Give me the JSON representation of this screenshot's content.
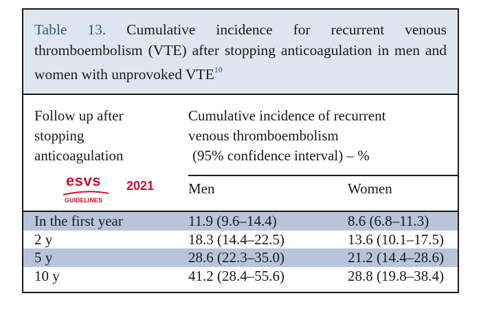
{
  "caption": {
    "label": "Table 13.",
    "text": " Cumulative incidence for recurrent venous thromboembolism (VTE) after stopping anticoagulation in men and women with unprovoked VTE",
    "ref": "10"
  },
  "header": {
    "left": [
      "Follow up after",
      "stopping",
      "anticoagulation"
    ],
    "right": [
      "Cumulative incidence of recurrent",
      "venous thromboembolism",
      "(95% confidence interval) – %"
    ],
    "men": "Men",
    "women": "Women"
  },
  "logo": {
    "word": "esvs",
    "subtitle": "GUIDELINES",
    "year": "2021",
    "color": "#c8102e"
  },
  "rows": [
    {
      "period": "In the first year",
      "men": "11.9 (9.6–14.4)",
      "women": "8.6 (6.8–11.3)"
    },
    {
      "period": "2 y",
      "men": "18.3 (14.4–22.5)",
      "women": "13.6 (10.1–17.5)"
    },
    {
      "period": "5 y",
      "men": "28.6 (22.3–35.0)",
      "women": "21.2 (14.4–28.6)"
    },
    {
      "period": "10 y",
      "men": "41.2 (28.4–55.6)",
      "women": "28.8 (19.8–38.4)"
    }
  ]
}
